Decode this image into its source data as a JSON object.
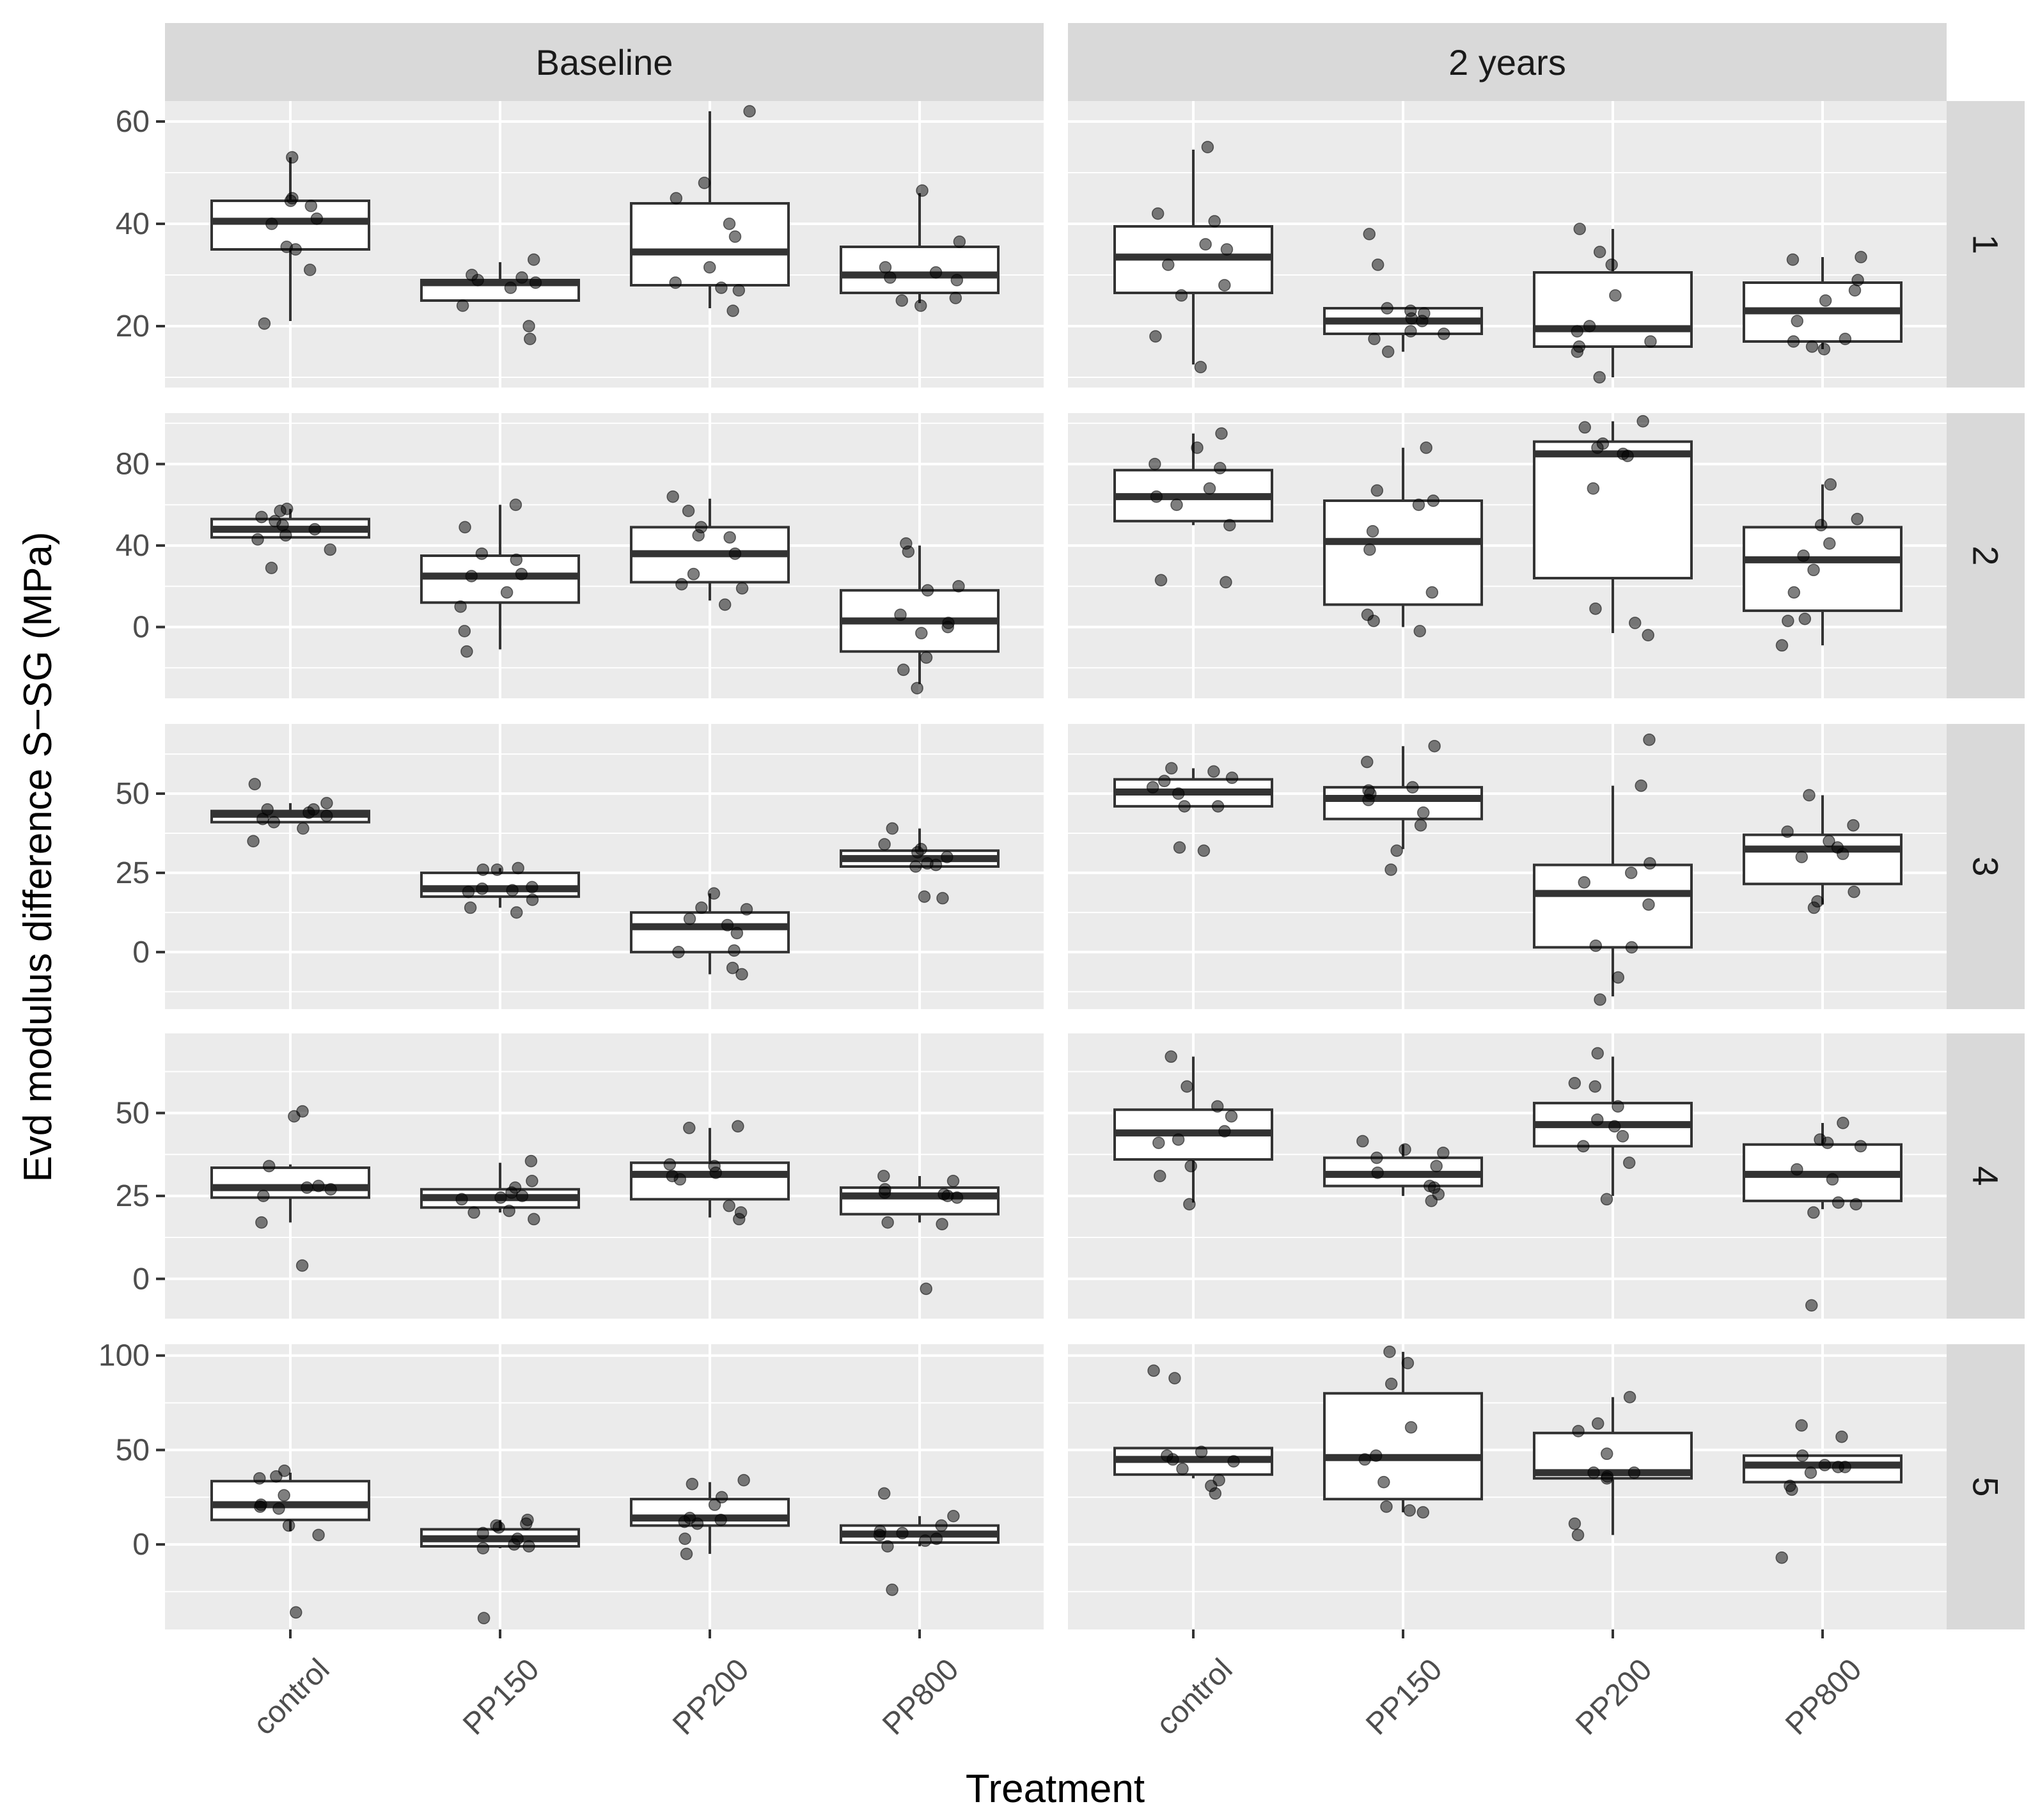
{
  "chart_data": {
    "type": "boxplot",
    "xlabel": "Treatment",
    "ylabel": "Evd modulus difference S−SG (MPa)",
    "columns": [
      "Baseline",
      "2 years"
    ],
    "rows": [
      "1",
      "2",
      "3",
      "4",
      "5"
    ],
    "categories": [
      "control",
      "PP150",
      "PP200",
      "PP800"
    ],
    "colors": {
      "panel_bg": "#ebebeb",
      "strip_bg": "#d9d9d9",
      "grid": "#ffffff",
      "box_fill": "#ffffff",
      "box_line": "#333333",
      "point": "#000000"
    },
    "row_scales": [
      {
        "row": "1",
        "ylim": [
          8,
          64
        ],
        "ticks": [
          20,
          40,
          60
        ]
      },
      {
        "row": "2",
        "ylim": [
          -35,
          105
        ],
        "ticks": [
          0,
          40,
          80
        ]
      },
      {
        "row": "3",
        "ylim": [
          -18,
          72
        ],
        "ticks": [
          0,
          25,
          50
        ]
      },
      {
        "row": "4",
        "ylim": [
          -12,
          74
        ],
        "ticks": [
          0,
          25,
          50
        ]
      },
      {
        "row": "5",
        "ylim": [
          -45,
          106
        ],
        "ticks": [
          0,
          50,
          100
        ]
      }
    ],
    "panels": [
      {
        "column": "Baseline",
        "row": "1",
        "boxes": [
          {
            "category": "control",
            "min": 21,
            "q1": 35,
            "median": 40.5,
            "q3": 44.5,
            "max": 53,
            "points": [
              20.5,
              31,
              35,
              35.5,
              40,
              41,
              43.5,
              44.5,
              45,
              53
            ]
          },
          {
            "category": "PP150",
            "min": 25,
            "q1": 25,
            "median": 28.5,
            "q3": 29,
            "max": 32.5,
            "points": [
              17.5,
              20,
              24,
              27.5,
              28.5,
              29,
              29.5,
              30,
              33
            ]
          },
          {
            "category": "PP200",
            "min": 23.5,
            "q1": 28,
            "median": 34.5,
            "q3": 44,
            "max": 62,
            "points": [
              23,
              27,
              27.5,
              28.5,
              31.5,
              37.5,
              40,
              45,
              48,
              62
            ]
          },
          {
            "category": "PP800",
            "min": 24.5,
            "q1": 26.5,
            "median": 30,
            "q3": 35.5,
            "max": 46,
            "points": [
              24,
              25,
              25.5,
              29,
              29.5,
              30.5,
              31.5,
              36.5,
              46.5
            ]
          }
        ]
      },
      {
        "column": "2 years",
        "row": "1",
        "boxes": [
          {
            "category": "control",
            "min": 12.5,
            "q1": 26.5,
            "median": 33.5,
            "q3": 39.5,
            "max": 54.5,
            "points": [
              12,
              18,
              26,
              28,
              32,
              35,
              36,
              40.5,
              42,
              55
            ]
          },
          {
            "category": "PP150",
            "min": 15,
            "q1": 18.5,
            "median": 21,
            "q3": 23.5,
            "max": 23.5,
            "points": [
              15,
              17.5,
              18.5,
              19,
              21,
              21.5,
              22.5,
              23,
              23.5,
              32,
              38
            ]
          },
          {
            "category": "PP200",
            "min": 10,
            "q1": 16,
            "median": 19.5,
            "q3": 30.5,
            "max": 39,
            "points": [
              10,
              15,
              16,
              17,
              19,
              20,
              26,
              32,
              34.5,
              39
            ]
          },
          {
            "category": "PP800",
            "min": 15.5,
            "q1": 17,
            "median": 23,
            "q3": 28.5,
            "max": 33.5,
            "points": [
              15.5,
              16,
              17,
              17.5,
              21,
              25,
              27,
              29,
              33,
              33.5
            ]
          }
        ]
      },
      {
        "column": "Baseline",
        "row": "2",
        "boxes": [
          {
            "category": "control",
            "min": 44,
            "q1": 44,
            "median": 48,
            "q3": 53,
            "max": 58,
            "points": [
              29,
              38,
              43,
              45,
              48,
              50,
              52,
              54,
              57,
              58
            ]
          },
          {
            "category": "PP150",
            "min": -11,
            "q1": 12,
            "median": 25,
            "q3": 35,
            "max": 60,
            "points": [
              -12,
              -2,
              10,
              17,
              25,
              26,
              33,
              36,
              49,
              60
            ]
          },
          {
            "category": "PP200",
            "min": 13,
            "q1": 22,
            "median": 36,
            "q3": 49,
            "max": 63,
            "points": [
              11,
              19,
              21,
              26,
              36,
              44,
              45,
              49,
              57,
              64
            ]
          },
          {
            "category": "PP800",
            "min": -28,
            "q1": -12,
            "median": 3,
            "q3": 18,
            "max": 40,
            "points": [
              -30,
              -21,
              -15,
              -3,
              0,
              2,
              6,
              18,
              20,
              37,
              41
            ]
          }
        ]
      },
      {
        "column": "2 years",
        "row": "2",
        "boxes": [
          {
            "category": "control",
            "min": 50,
            "q1": 52,
            "median": 64,
            "q3": 77,
            "max": 95,
            "points": [
              22,
              23,
              50,
              60,
              64,
              68,
              78,
              80,
              88,
              95
            ]
          },
          {
            "category": "PP150",
            "min": 0,
            "q1": 11,
            "median": 42,
            "q3": 62,
            "max": 88,
            "points": [
              -2,
              3,
              6,
              17,
              38,
              47,
              60,
              62,
              67,
              88
            ]
          },
          {
            "category": "PP200",
            "min": -3,
            "q1": 24,
            "median": 85,
            "q3": 91,
            "max": 101,
            "points": [
              -4,
              2,
              9,
              68,
              84,
              85,
              88,
              90,
              98,
              101
            ]
          },
          {
            "category": "PP800",
            "min": -9,
            "q1": 8,
            "median": 33,
            "q3": 49,
            "max": 70,
            "points": [
              -9,
              3,
              4,
              17,
              28,
              35,
              41,
              50,
              53,
              70
            ]
          }
        ]
      },
      {
        "column": "Baseline",
        "row": "3",
        "boxes": [
          {
            "category": "control",
            "min": 41,
            "q1": 41,
            "median": 43.5,
            "q3": 44.5,
            "max": 47,
            "points": [
              35,
              39,
              41,
              42,
              43,
              44,
              45,
              45,
              47,
              53
            ]
          },
          {
            "category": "PP150",
            "min": 14,
            "q1": 17.5,
            "median": 20,
            "q3": 25,
            "max": 26.5,
            "points": [
              12.5,
              14,
              16.5,
              19,
              19.5,
              20,
              20.5,
              26,
              26,
              26.5
            ]
          },
          {
            "category": "PP200",
            "min": -7,
            "q1": 0,
            "median": 8,
            "q3": 12.5,
            "max": 18.5,
            "points": [
              -7,
              -5,
              0,
              0.5,
              6,
              8.5,
              10.5,
              13.5,
              14,
              18.5
            ]
          },
          {
            "category": "PP800",
            "min": 26.5,
            "q1": 27,
            "median": 29.5,
            "q3": 32,
            "max": 39,
            "points": [
              17,
              17.5,
              27,
              27.5,
              28,
              30,
              31.5,
              32.5,
              34,
              39
            ]
          }
        ]
      },
      {
        "column": "2 years",
        "row": "3",
        "boxes": [
          {
            "category": "control",
            "min": 46,
            "q1": 46,
            "median": 50.5,
            "q3": 54.5,
            "max": 58,
            "points": [
              32,
              33,
              46,
              46,
              50,
              52,
              54,
              55,
              57,
              58
            ]
          },
          {
            "category": "PP150",
            "min": 32.5,
            "q1": 42,
            "median": 48.5,
            "q3": 52,
            "max": 65,
            "points": [
              26,
              32,
              40,
              44,
              48,
              50,
              51,
              52,
              60,
              65
            ]
          },
          {
            "category": "PP200",
            "min": -14,
            "q1": 1.5,
            "median": 18.5,
            "q3": 27.5,
            "max": 52.5,
            "points": [
              -15,
              -8,
              1.5,
              2,
              15,
              22,
              25,
              28,
              52.5,
              67
            ]
          },
          {
            "category": "PP800",
            "min": 15,
            "q1": 21.5,
            "median": 32.5,
            "q3": 37,
            "max": 49.5,
            "points": [
              14,
              16,
              19,
              30,
              31,
              33,
              35,
              38,
              40,
              49.5
            ]
          }
        ]
      },
      {
        "column": "Baseline",
        "row": "4",
        "boxes": [
          {
            "category": "control",
            "min": 17,
            "q1": 24.5,
            "median": 27.5,
            "q3": 33.5,
            "max": 34.5,
            "points": [
              4,
              17,
              25,
              27,
              27.5,
              28,
              34,
              49,
              50.5
            ]
          },
          {
            "category": "PP150",
            "min": 20,
            "q1": 21.5,
            "median": 24.5,
            "q3": 27,
            "max": 35,
            "points": [
              18,
              20,
              20.5,
              24,
              24.5,
              25,
              26,
              27.5,
              29.5,
              35.5
            ]
          },
          {
            "category": "PP200",
            "min": 18.5,
            "q1": 24,
            "median": 31.5,
            "q3": 35,
            "max": 45.5,
            "points": [
              18,
              20,
              22,
              30,
              31,
              32,
              34,
              34.5,
              45.5,
              46
            ]
          },
          {
            "category": "PP800",
            "min": 17,
            "q1": 19.5,
            "median": 25,
            "q3": 27.5,
            "max": 31,
            "points": [
              -3,
              16.5,
              17,
              24.5,
              25,
              25.5,
              26,
              27,
              29.5,
              31
            ]
          }
        ]
      },
      {
        "column": "2 years",
        "row": "4",
        "boxes": [
          {
            "category": "control",
            "min": 23,
            "q1": 36,
            "median": 44,
            "q3": 51,
            "max": 67,
            "points": [
              22.5,
              31,
              34,
              41,
              42,
              44.5,
              49,
              52,
              58,
              67
            ]
          },
          {
            "category": "PP150",
            "min": 25,
            "q1": 28,
            "median": 31.5,
            "q3": 36.5,
            "max": 40.5,
            "points": [
              23.5,
              25.5,
              27.5,
              28,
              32,
              34,
              36.5,
              38,
              39,
              41.5
            ]
          },
          {
            "category": "PP200",
            "min": 25,
            "q1": 40,
            "median": 46.5,
            "q3": 53,
            "max": 67,
            "points": [
              24,
              35,
              40,
              43,
              46,
              48,
              52,
              58,
              59,
              68
            ]
          },
          {
            "category": "PP800",
            "min": 21,
            "q1": 23.5,
            "median": 31.5,
            "q3": 40.5,
            "max": 47,
            "points": [
              -8,
              20,
              22.5,
              23,
              30,
              33,
              40,
              41,
              42,
              47
            ]
          }
        ]
      },
      {
        "column": "Baseline",
        "row": "5",
        "boxes": [
          {
            "category": "control",
            "min": 7,
            "q1": 13,
            "median": 21,
            "q3": 33.5,
            "max": 38,
            "points": [
              -36,
              5,
              10,
              19,
              20,
              21,
              26,
              35,
              36,
              39
            ]
          },
          {
            "category": "PP150",
            "min": -2,
            "q1": -1,
            "median": 3,
            "q3": 8,
            "max": 13,
            "points": [
              -39,
              -2,
              -1,
              0,
              3,
              6,
              9,
              10,
              11,
              13
            ]
          },
          {
            "category": "PP200",
            "min": -5,
            "q1": 10,
            "median": 14,
            "q3": 24,
            "max": 33,
            "points": [
              -5,
              3,
              11,
              12,
              13,
              14,
              21,
              25,
              32,
              34
            ]
          },
          {
            "category": "PP800",
            "min": -1,
            "q1": 1,
            "median": 5.5,
            "q3": 10,
            "max": 15,
            "points": [
              -24,
              -1,
              2,
              3,
              5,
              6,
              7,
              10,
              15,
              27
            ]
          }
        ]
      },
      {
        "column": "2 years",
        "row": "5",
        "boxes": [
          {
            "category": "control",
            "min": 35,
            "q1": 37,
            "median": 45,
            "q3": 51,
            "max": 51,
            "points": [
              27,
              31,
              34,
              40,
              44,
              45,
              47,
              49,
              88,
              92
            ]
          },
          {
            "category": "PP150",
            "min": 17,
            "q1": 24,
            "median": 46,
            "q3": 80,
            "max": 102,
            "points": [
              17,
              18,
              20,
              33,
              45,
              47,
              62,
              85,
              96,
              102
            ]
          },
          {
            "category": "PP200",
            "min": 5,
            "q1": 35,
            "median": 38,
            "q3": 59,
            "max": 78,
            "points": [
              5,
              11,
              35,
              36,
              38,
              38,
              48,
              60,
              64,
              78
            ]
          },
          {
            "category": "PP800",
            "min": 33,
            "q1": 33,
            "median": 42,
            "q3": 47,
            "max": 47,
            "points": [
              -7,
              29,
              31,
              38,
              41,
              41,
              42,
              47,
              57,
              63
            ]
          }
        ]
      }
    ]
  }
}
